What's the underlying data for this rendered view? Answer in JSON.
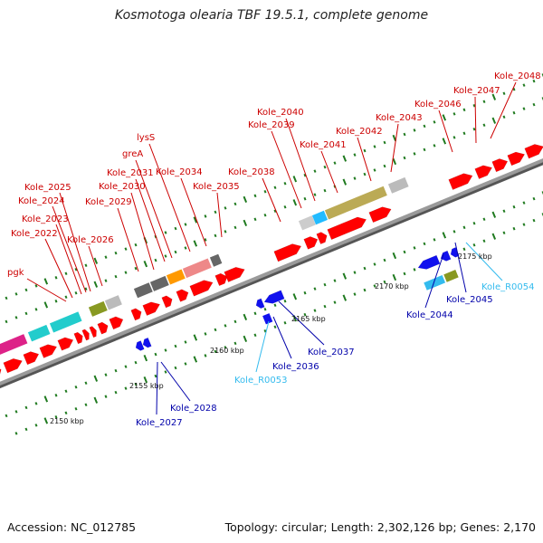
{
  "title": "Kosmotoga olearia TBF 19.5.1, complete genome",
  "footer": {
    "accession": "Accession: NC_012785",
    "stats": "Topology: circular; Length: 2,302,126 bp; Genes: 2,170"
  },
  "colors": {
    "forward_gene": "#ff0000",
    "reverse_gene": "#1111ee",
    "forward_label": "#cc0000",
    "reverse_label": "#0000aa",
    "rna_label": "#33bbee",
    "backbone": "#8a8a8a",
    "tick": "#1f7a1f"
  },
  "axis_ticks": [
    "2150 kbp",
    "2155 kbp",
    "2160 kbp",
    "2165 kbp",
    "2170 kbp",
    "2175 kbp"
  ],
  "forward_genes": [
    "pgk",
    "Kole_2022",
    "Kole_2023",
    "Kole_2024",
    "Kole_2025",
    "Kole_2026",
    "Kole_2029",
    "Kole_2030",
    "Kole_2031",
    "greA",
    "lysS",
    "Kole_2034",
    "Kole_2035",
    "Kole_2038",
    "Kole_2039",
    "Kole_2040",
    "Kole_2041",
    "Kole_2042",
    "Kole_2043",
    "Kole_2046",
    "Kole_2047",
    "Kole_2048"
  ],
  "reverse_genes": [
    "Kole_2027",
    "Kole_2028",
    "Kole_R0053",
    "Kole_2036",
    "Kole_2037",
    "Kole_2044",
    "Kole_2045",
    "Kole_R0054"
  ]
}
